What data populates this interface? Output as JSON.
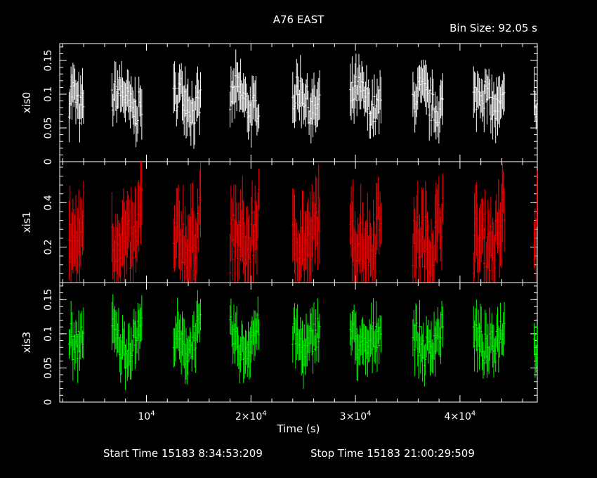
{
  "chart_data": {
    "type": "line",
    "title": "A76 EAST",
    "bin_size_label": "Bin Size: 92.05 s",
    "xlabel": "Time (s)",
    "xlim": [
      1700,
      47400
    ],
    "x_ticks": [
      {
        "value": 10000,
        "label": "10",
        "sup": "4"
      },
      {
        "value": 20000,
        "label": "2×10",
        "sup": "4"
      },
      {
        "value": 30000,
        "label": "3×10",
        "sup": "4"
      },
      {
        "value": 40000,
        "label": "4×10",
        "sup": "4"
      }
    ],
    "segments": [
      [
        2600,
        4000
      ],
      [
        6700,
        9600
      ],
      [
        12600,
        15200
      ],
      [
        18000,
        20800
      ],
      [
        24000,
        26600
      ],
      [
        29500,
        32500
      ],
      [
        35500,
        38400
      ],
      [
        41300,
        44300
      ],
      [
        47100,
        47400
      ]
    ],
    "panels": [
      {
        "name": "xis0",
        "ylabel": "xis0",
        "color": "#ffffff",
        "ylim": [
          0,
          0.175
        ],
        "ytick_labels": [
          "0",
          "0.05",
          "0.1",
          "0.15"
        ],
        "y_ticks": [
          0,
          0.05,
          0.1,
          0.15
        ],
        "base": 0.075,
        "amp": 0.03
      },
      {
        "name": "xis1",
        "ylabel": "xis1",
        "color": "#ff0000",
        "ylim": [
          0.04,
          0.585
        ],
        "ytick_labels": [
          "0.2",
          "0.4"
        ],
        "y_ticks": [
          0.2,
          0.4
        ],
        "base": 0.2,
        "amp": 0.15
      },
      {
        "name": "xis3",
        "ylabel": "xis3",
        "color": "#00ff00",
        "ylim": [
          0,
          0.175
        ],
        "ytick_labels": [
          "0",
          "0.05",
          "0.1",
          "0.15"
        ],
        "y_ticks": [
          0,
          0.05,
          0.1,
          0.15
        ],
        "base": 0.075,
        "amp": 0.03
      }
    ]
  },
  "footer": {
    "start_time": "Start Time 15183  8:34:53:209",
    "stop_time": "Stop Time 15183 21:00:29:509"
  }
}
